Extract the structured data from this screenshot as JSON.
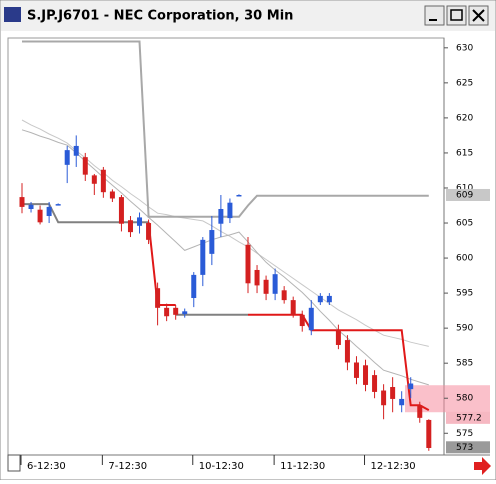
{
  "chart_data": {
    "type": "candlestick",
    "title": "S.JP.J6701 - NEC Corporation, 30 Min",
    "categories": [
      "6-12:30",
      null,
      null,
      null,
      null,
      null,
      null,
      null,
      null,
      "7-12:30",
      null,
      null,
      null,
      null,
      null,
      null,
      null,
      null,
      null,
      "10-12:30",
      null,
      null,
      null,
      null,
      null,
      null,
      null,
      null,
      "11-12:30",
      null,
      null,
      null,
      null,
      null,
      null,
      null,
      null,
      null,
      "12-12:30",
      null,
      null,
      null,
      null,
      null,
      null,
      null
    ],
    "open": [
      608.7,
      607.0,
      606.9,
      606.0,
      607.7,
      613.3,
      614.6,
      614.4,
      611.8,
      612.6,
      609.5,
      608.7,
      605.4,
      604.6,
      605.0,
      595.7,
      592.9,
      592.9,
      592.0,
      594.3,
      597.6,
      600.6,
      604.9,
      605.7,
      609.0,
      601.9,
      598.3,
      596.9,
      594.9,
      595.4,
      594.0,
      591.9,
      589.7,
      593.7,
      593.7,
      589.7,
      588.3,
      585.1,
      584.7,
      583.3,
      581.1,
      581.6,
      579.0,
      581.3,
      579.0,
      576.9
    ],
    "high": [
      610.7,
      608.0,
      607.5,
      608.0,
      607.8,
      616.0,
      617.5,
      615.0,
      612.0,
      613.0,
      609.8,
      609.0,
      606.0,
      606.5,
      605.5,
      596.5,
      593.5,
      593.3,
      592.8,
      598.0,
      603.0,
      606.0,
      609.0,
      608.5,
      609.1,
      603.0,
      599.0,
      597.5,
      598.5,
      596.0,
      594.5,
      592.5,
      594.0,
      595.0,
      595.0,
      590.5,
      589.0,
      586.0,
      585.5,
      584.0,
      582.0,
      583.0,
      581.0,
      583.0,
      579.5,
      577.0
    ],
    "low": [
      606.4,
      606.5,
      604.8,
      605.0,
      607.6,
      610.7,
      613.0,
      611.0,
      609.0,
      608.6,
      608.0,
      603.8,
      603.0,
      603.5,
      602.0,
      590.4,
      591.0,
      591.2,
      591.5,
      593.0,
      596.0,
      599.0,
      603.0,
      605.0,
      608.9,
      595.0,
      595.0,
      594.0,
      594.0,
      593.5,
      591.5,
      589.5,
      589.0,
      593.3,
      593.3,
      587.0,
      584.0,
      582.0,
      581.0,
      580.0,
      577.0,
      578.0,
      578.0,
      580.0,
      576.5,
      572.5
    ],
    "close": [
      607.3,
      607.6,
      605.1,
      607.3,
      607.7,
      615.4,
      616.0,
      611.9,
      610.6,
      609.4,
      608.5,
      604.9,
      603.7,
      605.8,
      602.6,
      592.9,
      591.7,
      591.9,
      592.4,
      597.6,
      602.6,
      604.0,
      607.0,
      607.9,
      609.0,
      596.4,
      596.1,
      594.9,
      597.7,
      594.0,
      591.9,
      590.3,
      592.9,
      594.6,
      594.6,
      587.6,
      585.1,
      582.9,
      581.9,
      580.9,
      579.0,
      579.9,
      579.9,
      582.1,
      577.2,
      572.9
    ],
    "up_color": "#2a5bd7",
    "down_color": "#d42020",
    "lines": [
      {
        "color": "#c8c8c8",
        "width": 1,
        "values": [
          619.7,
          619.0,
          618.4,
          617.7,
          617.1,
          616.4,
          615.3,
          614.3,
          613.2,
          612.2,
          611.1,
          610.2,
          609.2,
          608.3,
          607.3,
          606.4,
          606.2,
          605.9,
          605.7,
          605.5,
          605.3,
          604.6,
          603.8,
          603.1,
          602.3,
          601.6,
          600.7,
          599.8,
          598.9,
          598.0,
          597.1,
          596.2,
          595.3,
          594.4,
          593.5,
          592.6,
          591.9,
          591.2,
          590.4,
          589.7,
          589.0,
          588.7,
          588.4,
          588.0,
          587.7,
          587.4
        ]
      },
      {
        "color": "#b4b4b4",
        "width": 1,
        "values": [
          618.3,
          617.9,
          617.4,
          617.0,
          616.5,
          616.1,
          615.0,
          613.8,
          612.7,
          611.5,
          610.4,
          609.3,
          608.1,
          607.0,
          605.8,
          604.7,
          603.5,
          602.3,
          601.1,
          601.6,
          602.1,
          602.6,
          603.0,
          603.3,
          603.7,
          602.3,
          600.8,
          599.4,
          598.3,
          597.3,
          596.2,
          595.1,
          593.8,
          592.4,
          591.1,
          589.7,
          588.6,
          587.4,
          586.3,
          585.1,
          584.0,
          583.6,
          583.2,
          582.7,
          582.3,
          581.9
        ]
      },
      {
        "color": "#a8a8a8",
        "width": 2,
        "values": [
          630.9,
          630.9,
          630.9,
          630.9,
          630.9,
          630.9,
          630.9,
          630.9,
          630.9,
          630.9,
          630.9,
          630.9,
          630.9,
          630.9,
          605.9,
          605.9,
          605.9,
          605.9,
          605.9,
          605.9,
          605.9,
          605.9,
          605.9,
          605.9,
          605.9,
          607.5,
          608.9,
          608.9,
          608.9,
          608.9,
          608.9,
          608.9,
          608.9,
          608.9,
          608.9,
          608.9,
          608.9,
          608.9,
          608.9,
          608.9,
          608.9,
          608.9,
          608.9,
          608.9,
          608.9,
          608.9
        ]
      },
      {
        "color": "#808080",
        "width": 2,
        "values": [
          607.7,
          607.7,
          607.7,
          607.7,
          605.1,
          605.1,
          605.1,
          605.1,
          605.1,
          605.1,
          605.1,
          605.1,
          605.1,
          605.1,
          605.1,
          null,
          null,
          591.9,
          591.9,
          591.9,
          591.9,
          591.9,
          591.9,
          591.9,
          591.9,
          591.9,
          null,
          null,
          null,
          null,
          null,
          null,
          null,
          null,
          null,
          null,
          null,
          null,
          null,
          null,
          null,
          null,
          null,
          null,
          null,
          null
        ]
      },
      {
        "color": "#e01818",
        "width": 2,
        "values": [
          null,
          null,
          null,
          null,
          null,
          null,
          null,
          null,
          null,
          null,
          null,
          null,
          null,
          null,
          605.1,
          593.3,
          593.3,
          593.3,
          null,
          null,
          null,
          null,
          null,
          null,
          null,
          591.9,
          591.9,
          591.9,
          591.9,
          591.9,
          591.9,
          591.9,
          589.7,
          589.7,
          589.7,
          589.7,
          589.7,
          589.7,
          589.7,
          589.7,
          589.7,
          589.7,
          589.7,
          579.0,
          579.0,
          578.3
        ]
      }
    ],
    "ylim": [
      571.9,
      631.4
    ],
    "yticks": [
      575,
      580,
      585,
      590,
      595,
      600,
      605,
      610,
      615,
      620,
      625,
      630
    ],
    "alert_level": 580,
    "price_markers": [
      {
        "value": 609,
        "color": "#c8c8c8"
      },
      {
        "value": 577.2,
        "color": "#f6b8c2"
      },
      {
        "value": 573,
        "color": "#9a9a9a"
      }
    ]
  }
}
